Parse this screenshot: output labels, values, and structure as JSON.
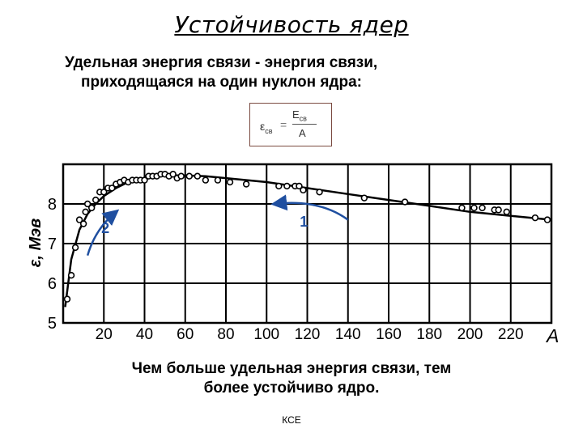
{
  "title": "Устойчивость ядер",
  "intro": {
    "line1_term": "Удельная энергия связи",
    "line1_rest": " - энергия связи,",
    "line2": "приходящаяся на один нуклон ядра:"
  },
  "formula": {
    "lhs": "ε",
    "lhs_sub": "св",
    "eq": "=",
    "num": "E",
    "num_sub": "св",
    "den": "A"
  },
  "conclusion": {
    "line1": "Чем больше удельная энергия связи, тем",
    "line2": "более устойчиво ядро."
  },
  "footer": "КСЕ",
  "chart_data": {
    "type": "scatter",
    "xlabel": "A",
    "ylabel": "ε, Мэв",
    "xlim": [
      0,
      240
    ],
    "ylim": [
      5,
      9
    ],
    "x_ticks": [
      20,
      40,
      60,
      80,
      100,
      120,
      140,
      160,
      180,
      200,
      220
    ],
    "y_ticks": [
      5,
      6,
      7,
      8
    ],
    "grid": true,
    "series": [
      {
        "kind": "points",
        "points": [
          [
            2,
            5.6
          ],
          [
            4,
            6.2
          ],
          [
            6,
            6.9
          ],
          [
            8,
            7.6
          ],
          [
            10,
            7.5
          ],
          [
            11,
            7.8
          ],
          [
            12,
            8.0
          ],
          [
            14,
            7.9
          ],
          [
            16,
            8.1
          ],
          [
            18,
            8.3
          ],
          [
            20,
            8.3
          ],
          [
            22,
            8.4
          ],
          [
            24,
            8.4
          ],
          [
            26,
            8.5
          ],
          [
            28,
            8.55
          ],
          [
            30,
            8.6
          ],
          [
            32,
            8.55
          ],
          [
            34,
            8.6
          ],
          [
            36,
            8.6
          ],
          [
            38,
            8.6
          ],
          [
            40,
            8.6
          ],
          [
            42,
            8.7
          ],
          [
            44,
            8.7
          ],
          [
            46,
            8.7
          ],
          [
            48,
            8.75
          ],
          [
            50,
            8.75
          ],
          [
            52,
            8.7
          ],
          [
            54,
            8.75
          ],
          [
            56,
            8.65
          ],
          [
            58,
            8.7
          ],
          [
            62,
            8.7
          ],
          [
            66,
            8.7
          ],
          [
            70,
            8.6
          ],
          [
            76,
            8.6
          ],
          [
            82,
            8.55
          ],
          [
            90,
            8.5
          ],
          [
            106,
            8.45
          ],
          [
            110,
            8.45
          ],
          [
            114,
            8.45
          ],
          [
            116,
            8.45
          ],
          [
            118,
            8.35
          ],
          [
            126,
            8.3
          ],
          [
            148,
            8.15
          ],
          [
            168,
            8.05
          ],
          [
            196,
            7.9
          ],
          [
            202,
            7.9
          ],
          [
            206,
            7.9
          ],
          [
            212,
            7.85
          ],
          [
            214,
            7.85
          ],
          [
            218,
            7.8
          ],
          [
            232,
            7.65
          ],
          [
            238,
            7.6
          ]
        ]
      },
      {
        "kind": "curve",
        "points": [
          [
            1,
            5.4
          ],
          [
            4,
            6.6
          ],
          [
            8,
            7.35
          ],
          [
            12,
            7.75
          ],
          [
            16,
            8.0
          ],
          [
            20,
            8.2
          ],
          [
            26,
            8.4
          ],
          [
            32,
            8.55
          ],
          [
            40,
            8.65
          ],
          [
            50,
            8.72
          ],
          [
            60,
            8.72
          ],
          [
            70,
            8.7
          ],
          [
            80,
            8.65
          ],
          [
            100,
            8.55
          ],
          [
            120,
            8.4
          ],
          [
            140,
            8.25
          ],
          [
            160,
            8.1
          ],
          [
            180,
            7.95
          ],
          [
            200,
            7.8
          ],
          [
            220,
            7.7
          ],
          [
            240,
            7.6
          ]
        ]
      }
    ],
    "annotations": [
      {
        "label": "2",
        "x_from": 12,
        "y_from": 6.7,
        "x_to": 26,
        "y_to": 7.8
      },
      {
        "label": "1",
        "x_from": 140,
        "y_from": 7.6,
        "x_to": 104,
        "y_to": 8.0
      }
    ]
  }
}
